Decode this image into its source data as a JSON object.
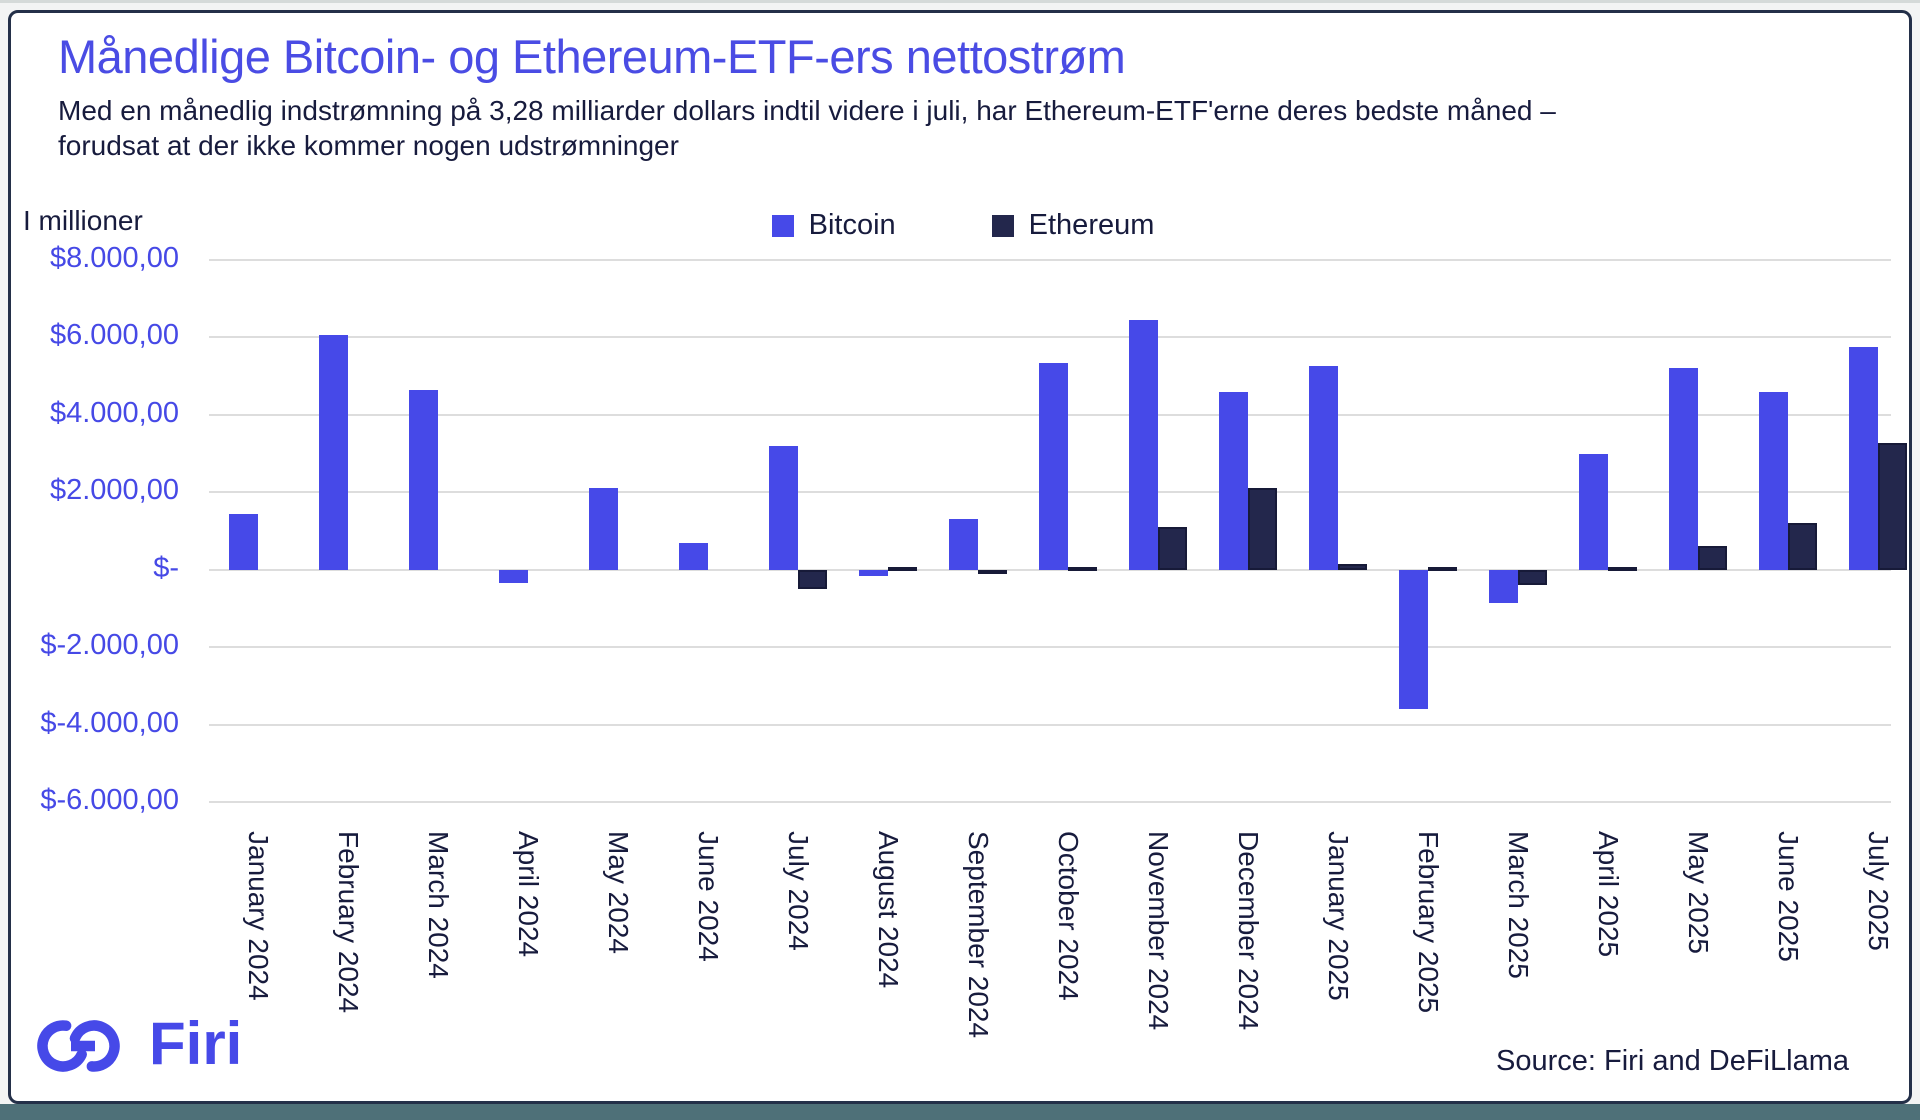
{
  "frame": {
    "bottom_bar_color": "#4e7078"
  },
  "header": {
    "title": "Månedlige Bitcoin- og Ethereum-ETF-ers nettostrøm",
    "subtitle": "Med en månedlig indstrømning på 3,28 milliarder dollars indtil videre i juli, har Ethereum-ETF'erne deres bedste måned – forudsat at der ikke kommer nogen udstrømninger"
  },
  "axis_note": "I millioner",
  "legend": [
    {
      "label": "Bitcoin",
      "color": "#4649e8"
    },
    {
      "label": "Ethereum",
      "color": "#23274c"
    }
  ],
  "footer": {
    "logo_text": "Firi",
    "source": "Source: Firi and DeFiLlama"
  },
  "chart_data": {
    "type": "bar",
    "title": "Månedlige Bitcoin- og Ethereum-ETF-ers nettostrøm",
    "ylabel": "I millioner",
    "ylim": [
      -6000,
      8000
    ],
    "grid": true,
    "legend_position": "top",
    "categories": [
      "January 2024",
      "February 2024",
      "March 2024",
      "April 2024",
      "May 2024",
      "June 2024",
      "July 2024",
      "August 2024",
      "September 2024",
      "October 2024",
      "November 2024",
      "December 2024",
      "January 2025",
      "February 2025",
      "March 2025",
      "April 2025",
      "May 2025",
      "June 2025",
      "July 2025"
    ],
    "series": [
      {
        "name": "Bitcoin",
        "color": "#4649e8",
        "values": [
          1450,
          6050,
          4650,
          -350,
          2100,
          700,
          3200,
          -150,
          1300,
          5350,
          6450,
          4600,
          5250,
          -3600,
          -850,
          3000,
          5200,
          4600,
          5750
        ]
      },
      {
        "name": "Ethereum",
        "color": "#23274c",
        "values": [
          0,
          0,
          0,
          0,
          0,
          0,
          -500,
          70,
          -100,
          70,
          1100,
          2100,
          150,
          80,
          -400,
          80,
          600,
          1200,
          3280
        ]
      }
    ],
    "yticks": [
      {
        "value": 8000,
        "label": "$8.000,00"
      },
      {
        "value": 6000,
        "label": "$6.000,00"
      },
      {
        "value": 4000,
        "label": "$4.000,00"
      },
      {
        "value": 2000,
        "label": "$2.000,00"
      },
      {
        "value": 0,
        "label": "$-"
      },
      {
        "value": -2000,
        "label": "$-2.000,00"
      },
      {
        "value": -4000,
        "label": "$-4.000,00"
      },
      {
        "value": -6000,
        "label": "$-6.000,00"
      }
    ]
  }
}
